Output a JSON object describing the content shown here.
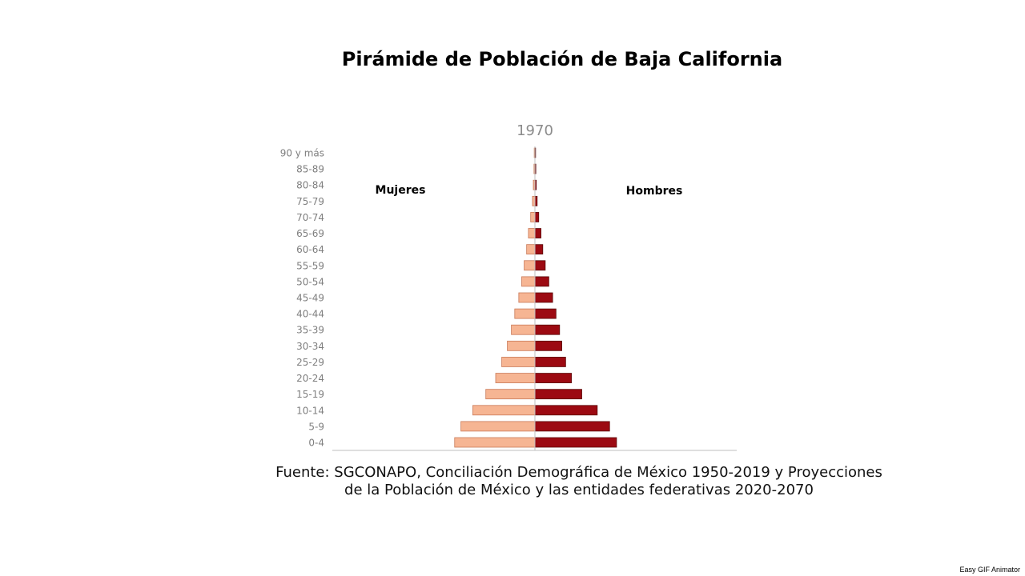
{
  "title": "Pirámide de Población de Baja California",
  "source_lines": [
    "Fuente: SGCONAPO, Conciliación Demográfica de México 1950-2019 y Proyecciones",
    "de la Población de México y las entidades federativas 2020-2070"
  ],
  "watermark": "Easy GIF Animator",
  "colors": {
    "mujeres_fill": "#f6b593",
    "mujeres_stroke": "#c97a58",
    "hombres_fill": "#9c0a12",
    "hombres_stroke": "#5a0a0a",
    "axis": "#bfbfbf",
    "tick_text": "#7f7f7f",
    "year_text": "#8c8c8c"
  },
  "chart_data": {
    "type": "bar",
    "subtype": "population-pyramid",
    "title": "1970",
    "categories": [
      "90 y más",
      "85-89",
      "80-84",
      "75-79",
      "70-74",
      "65-69",
      "60-64",
      "55-59",
      "50-54",
      "45-49",
      "40-44",
      "35-39",
      "30-34",
      "25-29",
      "20-24",
      "15-19",
      "10-14",
      "5-9",
      "0-4"
    ],
    "series": [
      {
        "name": "Mujeres",
        "values": [
          0.3,
          0.4,
          0.7,
          1.1,
          1.9,
          2.9,
          3.7,
          4.8,
          5.9,
          7.2,
          9.0,
          10.5,
          12.3,
          14.8,
          17.5,
          21.9,
          27.7,
          33.0,
          35.8
        ]
      },
      {
        "name": "Hombres",
        "values": [
          0.3,
          0.4,
          0.6,
          1.0,
          1.7,
          2.7,
          3.5,
          4.6,
          6.2,
          7.9,
          9.4,
          11.0,
          12.0,
          13.7,
          16.3,
          20.9,
          27.8,
          33.3,
          36.4
        ]
      }
    ],
    "xlim": [
      -90,
      90
    ],
    "grid": false,
    "legend": "labels inside plot: Mujeres top-left, Hombres top-right"
  }
}
